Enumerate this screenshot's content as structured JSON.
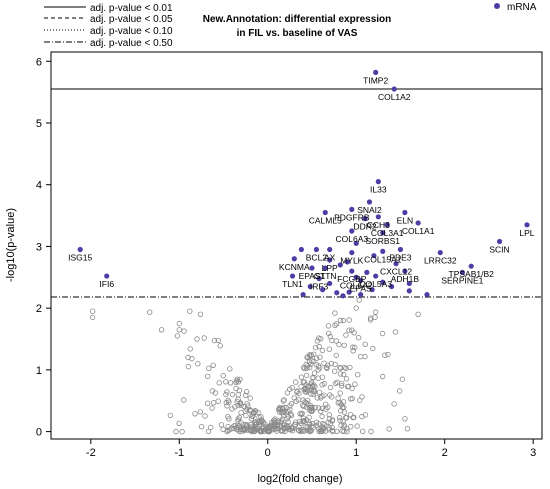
{
  "chart_data": {
    "type": "scatter",
    "title_lines": [
      "New.Annotation: differential expression",
      "in FIL vs. baseline of VAS"
    ],
    "xlabel": "log2(fold change)",
    "ylabel": "-log10(p-value)",
    "xlim": [
      -2.45,
      3.1
    ],
    "ylim": [
      -0.12,
      6.15
    ],
    "x_ticks": [
      -2,
      -1,
      0,
      1,
      2,
      3
    ],
    "y_ticks": [
      0,
      1,
      2,
      3,
      4,
      5,
      6
    ],
    "thresholds": [
      {
        "label": "adj. p-value < 0.01",
        "y": 5.55,
        "style": "solid"
      },
      {
        "label": "adj. p-value < 0.05",
        "y": null,
        "style": "dashed"
      },
      {
        "label": "adj. p-value < 0.10",
        "y": null,
        "style": "dotted"
      },
      {
        "label": "adj. p-value < 0.50",
        "y": 2.18,
        "style": "dashdot"
      }
    ],
    "highlight_legend": "mRNA",
    "highlight_color": "#4b3fa6",
    "base_color": "#8a8a8a",
    "highlighted": [
      {
        "gene": "TIMP2",
        "x": 1.22,
        "y": 5.82
      },
      {
        "gene": "COL1A2",
        "x": 1.43,
        "y": 5.55
      },
      {
        "gene": "IL33",
        "x": 1.25,
        "y": 4.05
      },
      {
        "gene": "SNAI2",
        "x": 1.15,
        "y": 3.72
      },
      {
        "gene": "CALML5",
        "x": 0.65,
        "y": 3.55
      },
      {
        "gene": "PDGFRB",
        "x": 0.95,
        "y": 3.6
      },
      {
        "gene": "DDR2",
        "x": 1.1,
        "y": 3.45
      },
      {
        "gene": "ELN",
        "x": 1.55,
        "y": 3.55
      },
      {
        "gene": "CCH3",
        "x": 1.25,
        "y": 3.48
      },
      {
        "gene": "COL3A1",
        "x": 1.35,
        "y": 3.35
      },
      {
        "gene": "COL1A1",
        "x": 1.7,
        "y": 3.38
      },
      {
        "gene": "COL6A3",
        "x": 0.95,
        "y": 3.25
      },
      {
        "gene": "SORBS1",
        "x": 1.3,
        "y": 3.22
      },
      {
        "gene": "LPL",
        "x": 2.93,
        "y": 3.35
      },
      {
        "gene": "SCIN",
        "x": 2.62,
        "y": 3.08
      },
      {
        "gene": "ISG15",
        "x": -2.12,
        "y": 2.95
      },
      {
        "gene": "BCL2",
        "x": 0.55,
        "y": 2.95
      },
      {
        "gene": "AX",
        "x": 0.7,
        "y": 2.95
      },
      {
        "gene": "COL15A1",
        "x": 1.3,
        "y": 2.92
      },
      {
        "gene": "LRRC32",
        "x": 1.95,
        "y": 2.9
      },
      {
        "gene": "PDE3",
        "x": 1.5,
        "y": 2.95
      },
      {
        "gene": "MYLK",
        "x": 0.95,
        "y": 2.9
      },
      {
        "gene": "KCNMA",
        "x": 0.3,
        "y": 2.8
      },
      {
        "gene": "LPP",
        "x": 0.7,
        "y": 2.78
      },
      {
        "gene": "CXCL12",
        "x": 1.45,
        "y": 2.72
      },
      {
        "gene": "EPAS1",
        "x": 0.5,
        "y": 2.65
      },
      {
        "gene": "CTTN",
        "x": 0.65,
        "y": 2.65
      },
      {
        "gene": "TPSAB1/B2",
        "x": 2.3,
        "y": 2.68
      },
      {
        "gene": "ADH1B",
        "x": 1.55,
        "y": 2.6
      },
      {
        "gene": "FCGBP",
        "x": 0.95,
        "y": 2.6
      },
      {
        "gene": "SERPINE1",
        "x": 2.2,
        "y": 2.58
      },
      {
        "gene": "TLN1",
        "x": 0.28,
        "y": 2.52
      },
      {
        "gene": "IRF3",
        "x": 0.58,
        "y": 2.48
      },
      {
        "gene": "COL6A2",
        "x": 1.0,
        "y": 2.5
      },
      {
        "gene": "EPAS",
        "x": 1.05,
        "y": 2.45
      },
      {
        "gene": "COL5A3",
        "x": 1.22,
        "y": 2.52
      },
      {
        "gene": "IFI6",
        "x": -1.82,
        "y": 2.52
      }
    ],
    "extra_highlighted": [
      {
        "x": 0.4,
        "y": 2.22
      },
      {
        "x": 0.62,
        "y": 2.3
      },
      {
        "x": 0.78,
        "y": 2.25
      },
      {
        "x": 0.85,
        "y": 2.2
      },
      {
        "x": 0.92,
        "y": 2.26
      },
      {
        "x": 1.05,
        "y": 2.22
      },
      {
        "x": 1.18,
        "y": 2.3
      },
      {
        "x": 1.3,
        "y": 2.42
      },
      {
        "x": 1.4,
        "y": 2.35
      },
      {
        "x": 1.6,
        "y": 2.28
      },
      {
        "x": 1.8,
        "y": 2.22
      },
      {
        "x": 0.7,
        "y": 2.4
      },
      {
        "x": 0.48,
        "y": 2.35
      },
      {
        "x": 1.12,
        "y": 2.58
      },
      {
        "x": 0.82,
        "y": 2.7
      },
      {
        "x": 1.0,
        "y": 3.05
      },
      {
        "x": 1.2,
        "y": 2.85
      },
      {
        "x": 0.38,
        "y": 2.95
      },
      {
        "x": 0.9,
        "y": 2.75
      },
      {
        "x": 1.6,
        "y": 2.4
      }
    ]
  }
}
